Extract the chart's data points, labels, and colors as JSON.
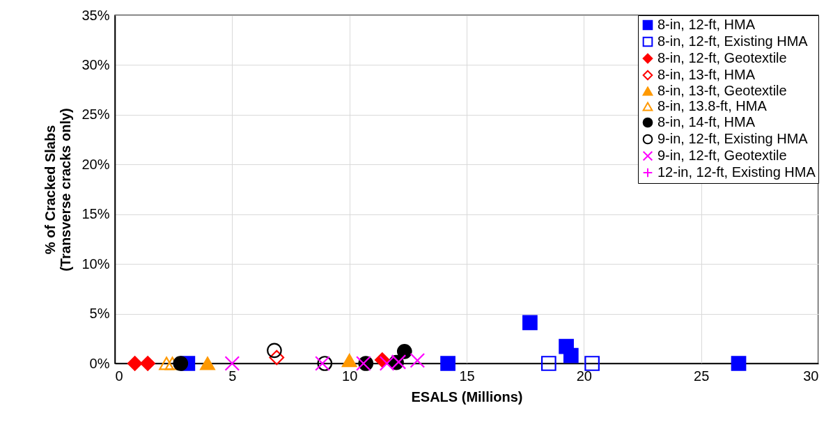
{
  "chart_data": {
    "type": "scatter",
    "xlabel": "ESALS (Millions)",
    "ylabel": "% of Cracked Slabs\n(Transverse cracks only)",
    "xlim": [
      0,
      30
    ],
    "xticks": [
      0,
      5,
      10,
      15,
      20,
      25,
      30
    ],
    "ylim": [
      0,
      35
    ],
    "yticks": [
      {
        "value": 0,
        "label": "0%"
      },
      {
        "value": 5,
        "label": "5%"
      },
      {
        "value": 10,
        "label": "10%"
      },
      {
        "value": 15,
        "label": "15%"
      },
      {
        "value": 20,
        "label": "20%"
      },
      {
        "value": 25,
        "label": "25%"
      },
      {
        "value": 30,
        "label": "30%"
      },
      {
        "value": 35,
        "label": "35%"
      }
    ],
    "grid": true,
    "legend": "top right",
    "series": [
      {
        "name": "8-in, 12-ft, HMA",
        "color": "#0000ff",
        "marker": "square",
        "x": [
          3.1,
          14.2,
          17.7,
          19.25,
          19.45,
          26.6
        ],
        "values": [
          0,
          0,
          4.1,
          1.7,
          0.8,
          0
        ]
      },
      {
        "name": "8-in, 12-ft, Existing HMA",
        "color": "#0000ff",
        "marker": "square",
        "x": [
          18.5,
          20.35
        ],
        "values": [
          0,
          0
        ]
      },
      {
        "name": "8-in, 12-ft, Geotextile",
        "color": "#ff0000",
        "marker": "diamond",
        "x": [
          0.85,
          1.4,
          11.4
        ],
        "values": [
          0,
          0,
          0.35
        ]
      },
      {
        "name": "8-in, 13-ft, HMA",
        "color": "#ff0000",
        "marker": "diamond",
        "x": [
          6.9
        ],
        "values": [
          0.6
        ]
      },
      {
        "name": "8-in, 13-ft, Geotextile",
        "color": "#ff9900",
        "marker": "triangle",
        "x": [
          3.95,
          10.0
        ],
        "values": [
          0,
          0.3
        ]
      },
      {
        "name": "8-in, 13.8-ft, HMA",
        "color": "#ff9900",
        "marker": "triangle",
        "x": [
          2.2,
          2.45
        ],
        "values": [
          0,
          0
        ]
      },
      {
        "name": "8-in, 14-ft, HMA",
        "color": "#000000",
        "marker": "circle",
        "x": [
          2.8,
          10.7,
          12.0,
          12.35
        ],
        "values": [
          0,
          0,
          0.1,
          1.2
        ]
      },
      {
        "name": "9-in, 12-ft, Existing HMA",
        "color": "#000000",
        "marker": "circle",
        "x": [
          6.8,
          8.95
        ],
        "values": [
          1.3,
          0
        ]
      },
      {
        "name": "9-in, 12-ft, Geotextile",
        "color": "#ff00ff",
        "marker": "cross",
        "x": [
          5.0,
          8.85,
          10.6,
          11.6,
          12.1,
          12.9
        ],
        "values": [
          0,
          0,
          0,
          0,
          0.15,
          0.3
        ]
      },
      {
        "name": "12-in, 12-ft, Existing HMA",
        "color": "#ff00ff",
        "marker": "plus"
      }
    ]
  }
}
